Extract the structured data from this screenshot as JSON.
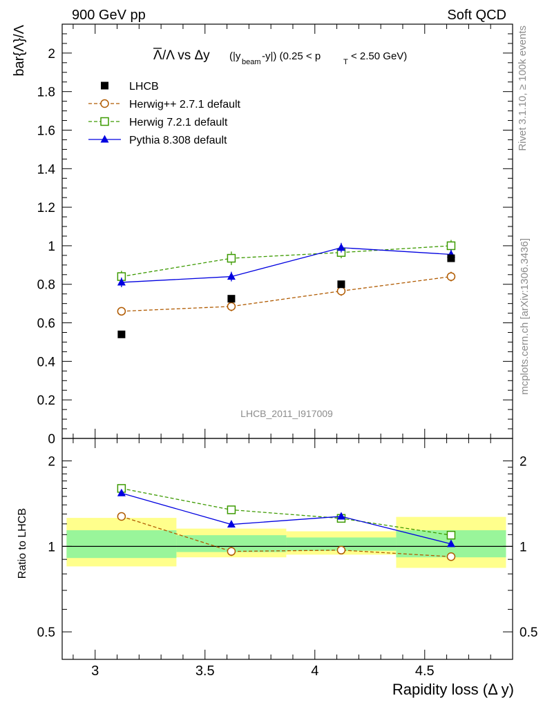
{
  "header": {
    "left": "900 GeV pp",
    "right": "Soft QCD"
  },
  "side_text": {
    "rivet": "Rivet 3.1.10, ≥ 100k events",
    "source": "mcplots.cern.ch [arXiv:1306.3436]"
  },
  "chart_data": [
    {
      "type": "scatter",
      "title": "Λ̅/Λ vs Δy (|y_beam-y|) (0.25 < p_T < 2.50 GeV)",
      "title_parts": {
        "ratio": "/Λ vs Δy",
        "abs_open": "(|y",
        "beam_sub": "beam",
        "abs_close": "-y|) (0.25 < p",
        "pt_sub": "T",
        "range_end": "< 2.50 GeV)"
      },
      "ylabel": "bar{Λ}/Λ",
      "xlabel": "Rapidity loss (Δ y)",
      "analysis_id": "LHCB_2011_I917009",
      "xlim": [
        2.85,
        4.9
      ],
      "ylim": [
        0,
        2.15
      ],
      "y_ticks": [
        "0",
        "0.2",
        "0.4",
        "0.6",
        "0.8",
        "1",
        "1.2",
        "1.4",
        "1.6",
        "1.8",
        "2"
      ],
      "legend_position": "top-left",
      "x": [
        3.12,
        3.62,
        4.12,
        4.62
      ],
      "series": [
        {
          "name": "LHCB",
          "color": "#000000",
          "marker": "filled-square",
          "values": [
            0.54,
            0.725,
            0.8,
            0.935
          ],
          "errors": [
            0.01,
            0.01,
            0.01,
            0.01
          ]
        },
        {
          "name": "Herwig++ 2.7.1 default",
          "color": "#b05a00",
          "marker": "open-circle",
          "line": "dashed",
          "values": [
            0.66,
            0.685,
            0.765,
            0.84
          ],
          "errors": [
            0.02,
            0.025,
            0.025,
            0.025
          ]
        },
        {
          "name": "Herwig 7.2.1 default",
          "color": "#3c9a00",
          "marker": "open-square",
          "line": "dashed",
          "values": [
            0.84,
            0.935,
            0.965,
            1.0
          ],
          "errors": [
            0.03,
            0.035,
            0.03,
            0.03
          ]
        },
        {
          "name": "Pythia 8.308 default",
          "color": "#0000e0",
          "marker": "filled-triangle",
          "line": "solid",
          "values": [
            0.81,
            0.84,
            0.99,
            0.955
          ],
          "errors": [
            0.025,
            0.025,
            0.025,
            0.025
          ]
        }
      ]
    },
    {
      "type": "scatter",
      "ylabel": "Ratio to LHCB",
      "xlabel": "Rapidity loss (Δ y)",
      "xlim": [
        2.85,
        4.9
      ],
      "ylim": [
        0.4,
        2.4
      ],
      "y_scale": "log",
      "x_ticks": [
        "3",
        "3.5",
        "4",
        "4.5"
      ],
      "y_ticks": [
        "0.5",
        "1",
        "2"
      ],
      "reference_line": 1,
      "bands": [
        {
          "x_range": [
            2.87,
            3.37
          ],
          "yellow": [
            0.85,
            1.26
          ],
          "green": [
            0.91,
            1.14
          ]
        },
        {
          "x_range": [
            3.37,
            3.87
          ],
          "yellow": [
            0.915,
            1.155
          ],
          "green": [
            0.955,
            1.095
          ]
        },
        {
          "x_range": [
            3.87,
            4.37
          ],
          "yellow": [
            0.935,
            1.13
          ],
          "green": [
            0.965,
            1.075
          ]
        },
        {
          "x_range": [
            4.37,
            4.87
          ],
          "yellow": [
            0.84,
            1.27
          ],
          "green": [
            0.915,
            1.14
          ]
        }
      ],
      "x": [
        3.12,
        3.62,
        4.12,
        4.62
      ],
      "series": [
        {
          "name": "Herwig++ 2.7.1 default",
          "values": [
            1.275,
            0.96,
            0.97,
            0.92
          ],
          "errors": [
            0.035,
            0.035,
            0.03,
            0.025
          ]
        },
        {
          "name": "Herwig 7.2.1 default",
          "values": [
            1.6,
            1.345,
            1.255,
            1.095
          ],
          "errors": [
            0.04,
            0.035,
            0.03,
            0.025
          ]
        },
        {
          "name": "Pythia 8.308 default",
          "values": [
            1.54,
            1.195,
            1.275,
            1.02
          ],
          "errors": [
            0.035,
            0.03,
            0.03,
            0.025
          ]
        }
      ]
    }
  ]
}
